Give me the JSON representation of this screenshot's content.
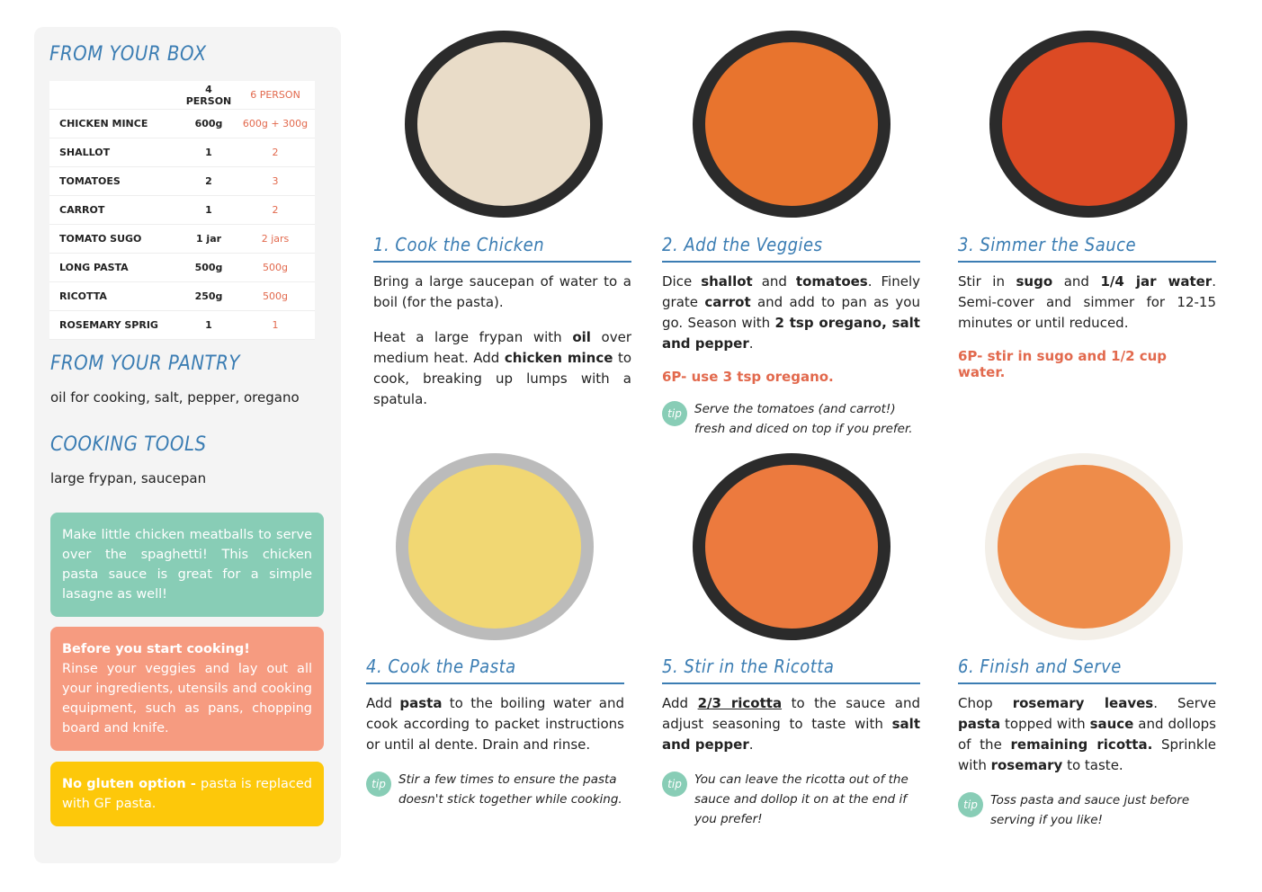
{
  "sidebar": {
    "box_title": "FROM YOUR BOX",
    "table": {
      "header": [
        "4 PERSON",
        "6 PERSON"
      ],
      "rows": [
        [
          "CHICKEN MINCE",
          "600g",
          "600g + 300g"
        ],
        [
          "SHALLOT",
          "1",
          "2"
        ],
        [
          "TOMATOES",
          "2",
          "3"
        ],
        [
          "CARROT",
          "1",
          "2"
        ],
        [
          "TOMATO SUGO",
          "1 jar",
          "2 jars"
        ],
        [
          "LONG PASTA",
          "500g",
          "500g"
        ],
        [
          "RICOTTA",
          "250g",
          "500g"
        ],
        [
          "ROSEMARY SPRIG",
          "1",
          "1"
        ]
      ]
    },
    "pantry_title": "FROM YOUR PANTRY",
    "pantry_text": "oil for cooking, salt, pepper, oregano",
    "tools_title": "COOKING TOOLS",
    "tools_text": "large frypan, saucepan",
    "notes": [
      {
        "color": "#88cdb6",
        "text": "Make little chicken meatballs to serve over the spaghetti! This chicken pasta sauce is great for a simple lasagne as well!"
      },
      {
        "color": "#f69b80",
        "heading": "Before you start cooking!",
        "text": "Rinse your veggies and lay out all your ingredients, utensils and cooking equipment, such as pans, chopping board and knife."
      },
      {
        "color": "#fdc80a",
        "heading": "No gluten option - ",
        "text": "pasta is replaced with GF pasta."
      }
    ]
  },
  "tip_label": "tip",
  "steps": [
    {
      "title": "1. Cook the Chicken",
      "paragraphs": [
        [
          {
            "text": "Bring a large saucepan of water to a boil (for the pasta)."
          }
        ],
        [
          {
            "text": "Heat a large frypan with "
          },
          {
            "text": "oil",
            "bold": true
          },
          {
            "text": " over medium heat. Add "
          },
          {
            "text": "chicken mince",
            "bold": true
          },
          {
            "text": " to cook, breaking up lumps with a spatula."
          }
        ]
      ]
    },
    {
      "title": "2. Add the Veggies",
      "paragraphs": [
        [
          {
            "text": "Dice "
          },
          {
            "text": "shallot",
            "bold": true
          },
          {
            "text": " and "
          },
          {
            "text": "tomatoes",
            "bold": true
          },
          {
            "text": ". Finely grate "
          },
          {
            "text": "carrot",
            "bold": true
          },
          {
            "text": " and add to pan as you go. Season with "
          },
          {
            "text": "2 tsp oregano, salt and pepper",
            "bold": true
          },
          {
            "text": "."
          }
        ]
      ],
      "six_person": "6P- use 3 tsp oregano.",
      "tip": "Serve the tomatoes (and carrot!) fresh and diced on top if you prefer."
    },
    {
      "title": "3. Simmer the Sauce",
      "paragraphs": [
        [
          {
            "text": "Stir in "
          },
          {
            "text": "sugo",
            "bold": true
          },
          {
            "text": " and "
          },
          {
            "text": "1/4 jar water",
            "bold": true
          },
          {
            "text": ". Semi-cover and simmer for 12-15 minutes or until reduced."
          }
        ]
      ],
      "six_person": "6P- stir in sugo and 1/2 cup water."
    },
    {
      "title": "4. Cook the Pasta",
      "paragraphs": [
        [
          {
            "text": "Add "
          },
          {
            "text": "pasta",
            "bold": true
          },
          {
            "text": " to the boiling water and cook according to packet instructions or until al dente. Drain and rinse."
          }
        ]
      ],
      "tip": "Stir a few times to ensure the pasta doesn't stick together while cooking."
    },
    {
      "title": "5. Stir in the Ricotta",
      "paragraphs": [
        [
          {
            "text": "Add "
          },
          {
            "text": "2/3 ricotta",
            "bold": true,
            "underline": true
          },
          {
            "text": " to the sauce and adjust seasoning to taste with "
          },
          {
            "text": "salt and pepper",
            "bold": true
          },
          {
            "text": "."
          }
        ]
      ],
      "tip": "You can leave the ricotta out of the sauce and dollop it on at the end if you prefer!"
    },
    {
      "title": "6. Finish and Serve",
      "paragraphs": [
        [
          {
            "text": "Chop "
          },
          {
            "text": "rosemary leaves",
            "bold": true
          },
          {
            "text": ". Serve "
          },
          {
            "text": "pasta",
            "bold": true
          },
          {
            "text": " topped with "
          },
          {
            "text": "sauce",
            "bold": true
          },
          {
            "text": " and dollops of the "
          },
          {
            "text": "remaining ricotta.",
            "bold": true
          },
          {
            "text": " Sprinkle with "
          },
          {
            "text": "rosemary",
            "bold": true
          },
          {
            "text": " to taste."
          }
        ]
      ],
      "tip": "Toss pasta and sauce just before serving if you like!"
    }
  ]
}
